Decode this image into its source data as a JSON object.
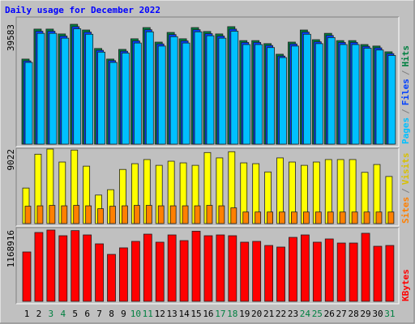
{
  "chart_data": [
    {
      "type": "bar",
      "title": "Daily usage for December 2022",
      "legend_separator": "/",
      "ylim": [
        0,
        39583
      ],
      "yticks": [
        39583
      ],
      "series": [
        {
          "name": "Hits",
          "color": "#008040",
          "values": [
            28100,
            38000,
            38000,
            36400,
            39583,
            37700,
            31600,
            28100,
            31300,
            34800,
            38500,
            33700,
            36900,
            34800,
            38500,
            37200,
            36400,
            38800,
            34200,
            34200,
            33200,
            29700,
            33700,
            37700,
            34500,
            36600,
            34200,
            34200,
            32900,
            32400,
            30500
          ]
        },
        {
          "name": "Files",
          "color": "#0040ff",
          "values": [
            27500,
            37300,
            37300,
            35700,
            38800,
            37000,
            31000,
            27600,
            30700,
            34100,
            37800,
            33100,
            36200,
            34100,
            37800,
            36500,
            35700,
            38000,
            33600,
            33600,
            32600,
            29100,
            33100,
            37000,
            33800,
            35900,
            33600,
            33600,
            32300,
            31800,
            29900
          ]
        },
        {
          "name": "Pages",
          "color": "#00c0ff",
          "values": [
            27000,
            36600,
            36600,
            35000,
            38100,
            36300,
            30400,
            27000,
            30100,
            33400,
            37100,
            32400,
            35500,
            33400,
            37100,
            35800,
            35000,
            37300,
            32900,
            32900,
            31900,
            28600,
            32400,
            36300,
            33200,
            35200,
            32900,
            32900,
            31700,
            31100,
            29300
          ]
        }
      ]
    },
    {
      "type": "bar",
      "legend_separator": "/",
      "ylim": [
        0,
        9022
      ],
      "yticks": [
        9022
      ],
      "series": [
        {
          "name": "Visits",
          "color": "#ffff00",
          "legend_color": "#d8c000",
          "values": [
            4300,
            8400,
            9022,
            7450,
            8900,
            6950,
            3450,
            4100,
            6550,
            7250,
            7750,
            7050,
            7550,
            7350,
            7050,
            8600,
            7950,
            8700,
            7350,
            7250,
            6250,
            7950,
            7450,
            7050,
            7450,
            7750,
            7750,
            7750,
            6200,
            7150,
            5700
          ]
        },
        {
          "name": "Sites",
          "color": "#ff8000",
          "values": [
            2100,
            2150,
            2200,
            2150,
            2200,
            2150,
            1800,
            2100,
            2150,
            2200,
            2200,
            2150,
            2150,
            2150,
            2150,
            2200,
            2150,
            1900,
            1400,
            1400,
            1400,
            1400,
            1400,
            1400,
            1400,
            1400,
            1400,
            1400,
            1400,
            1400,
            1400
          ]
        }
      ]
    },
    {
      "type": "bar",
      "ylim": [
        0,
        1168916
      ],
      "yticks": [
        1168916
      ],
      "categories": [
        "1",
        "2",
        "3",
        "4",
        "5",
        "6",
        "7",
        "8",
        "9",
        "10",
        "11",
        "12",
        "13",
        "14",
        "15",
        "16",
        "17",
        "18",
        "19",
        "20",
        "21",
        "22",
        "23",
        "24",
        "25",
        "26",
        "27",
        "28",
        "29",
        "30",
        "31"
      ],
      "category_colors": [
        "#000000",
        "#000000",
        "#008040",
        "#008040",
        "#000000",
        "#000000",
        "#000000",
        "#000000",
        "#000000",
        "#008040",
        "#008040",
        "#000000",
        "#000000",
        "#000000",
        "#000000",
        "#000000",
        "#008040",
        "#008040",
        "#000000",
        "#000000",
        "#000000",
        "#000000",
        "#000000",
        "#008040",
        "#008040",
        "#000000",
        "#000000",
        "#000000",
        "#000000",
        "#000000",
        "#008040"
      ],
      "series": [
        {
          "name": "KBytes",
          "color": "#ff0000",
          "values": [
            810000,
            1129000,
            1168916,
            1076000,
            1160000,
            1089000,
            943000,
            770000,
            877000,
            983000,
            1102000,
            970000,
            1089000,
            996000,
            1150000,
            1076000,
            1089000,
            1076000,
            970000,
            983000,
            916000,
            890000,
            1049000,
            1089000,
            970000,
            1023000,
            956000,
            956000,
            1116000,
            903000,
            916000
          ]
        }
      ]
    }
  ]
}
